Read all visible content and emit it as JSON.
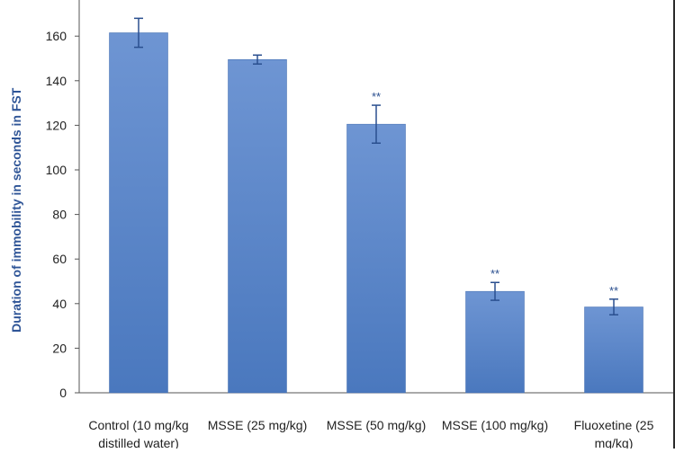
{
  "chart_data": {
    "type": "bar",
    "title": "",
    "xlabel": "",
    "ylabel": "Duration of immobility in seconds in FST",
    "ylim": [
      0,
      180
    ],
    "yticks": [
      0,
      20,
      40,
      60,
      80,
      100,
      120,
      140,
      160,
      180
    ],
    "grid": false,
    "legend": "none",
    "bar_color": "#4a78be",
    "bar_color_light": "#6e95d3",
    "categories": [
      [
        "Control (10 mg/kg",
        "distilled water)"
      ],
      [
        "MSSE (25 mg/kg)"
      ],
      [
        "MSSE (50 mg/kg)"
      ],
      [
        "MSSE (100 mg/kg)"
      ],
      [
        "Fluoxetine (25",
        "mg/kg)"
      ]
    ],
    "values": [
      161.5,
      149.5,
      120.5,
      45.5,
      38.5
    ],
    "errors": [
      6.5,
      2.0,
      8.5,
      4.0,
      3.5
    ],
    "annotations": [
      "",
      "",
      "**",
      "**",
      "**"
    ]
  }
}
